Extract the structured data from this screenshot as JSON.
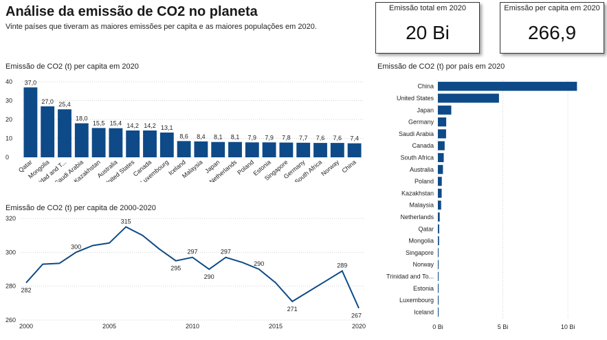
{
  "header": {
    "title": "Análise da emissão de CO2 no planeta",
    "subtitle": "Vinte países que tiveram as maiores emissões per capita e as maiores populações em 2020."
  },
  "kpis": [
    {
      "label": "Emissão total em 2020",
      "value": "20 Bi"
    },
    {
      "label": "Emissão per capita em 2020",
      "value": "266,9"
    }
  ],
  "colors": {
    "bar": "#0e4a87",
    "grid": "#cfcfcf",
    "text": "#222222"
  },
  "chart_data": [
    {
      "type": "bar",
      "title": "Emissão de CO2 (t) per capita em 2020",
      "categories": [
        "Qatar",
        "Mongolia",
        "Trinidad and T...",
        "Saudi Arabia",
        "Kazakhstan",
        "Australia",
        "United States",
        "Canada",
        "Luxembourg",
        "Iceland",
        "Malaysia",
        "Japan",
        "Netherlands",
        "Poland",
        "Estonia",
        "Singapore",
        "Germany",
        "South Africa",
        "Norway",
        "China"
      ],
      "values": [
        37.0,
        27.0,
        25.4,
        18.0,
        15.5,
        15.4,
        14.2,
        14.2,
        13.1,
        8.6,
        8.4,
        8.1,
        8.1,
        7.9,
        7.9,
        7.8,
        7.7,
        7.6,
        7.6,
        7.4
      ],
      "data_labels": [
        "37,0",
        "27,0",
        "25,4",
        "18,0",
        "15,5",
        "15,4",
        "14,2",
        "14,2",
        "13,1",
        "8,6",
        "8,4",
        "8,1",
        "8,1",
        "7,9",
        "7,9",
        "7,8",
        "7,7",
        "7,6",
        "7,6",
        "7,4"
      ],
      "ylim": [
        0,
        40
      ],
      "yticks": [
        0,
        10,
        20,
        30,
        40
      ],
      "grid": true
    },
    {
      "type": "line",
      "title": "Emissão de CO2 (t) per capita de 2000-2020",
      "x": [
        2000,
        2001,
        2002,
        2003,
        2004,
        2005,
        2006,
        2007,
        2008,
        2009,
        2010,
        2011,
        2012,
        2013,
        2014,
        2015,
        2016,
        2017,
        2018,
        2019,
        2020
      ],
      "values": [
        282,
        293,
        293.5,
        300,
        304,
        305.5,
        315,
        310,
        302,
        295,
        297,
        290,
        297,
        294,
        290,
        282,
        271,
        277,
        283,
        289,
        267
      ],
      "point_labels": [
        {
          "x": 2000,
          "text": "282"
        },
        {
          "x": 2003,
          "text": "300"
        },
        {
          "x": 2006,
          "text": "315"
        },
        {
          "x": 2009,
          "text": "295"
        },
        {
          "x": 2010,
          "text": "297"
        },
        {
          "x": 2011,
          "text": "290"
        },
        {
          "x": 2012,
          "text": "297"
        },
        {
          "x": 2014,
          "text": "290"
        },
        {
          "x": 2016,
          "text": "271"
        },
        {
          "x": 2019,
          "text": "289"
        },
        {
          "x": 2020,
          "text": "267"
        }
      ],
      "ylim": [
        260,
        320
      ],
      "yticks": [
        260,
        280,
        300,
        320
      ],
      "xticks": [
        2000,
        2005,
        2010,
        2015,
        2020
      ],
      "grid": true
    },
    {
      "type": "bar",
      "orientation": "horizontal",
      "title": "Emissão de CO2 (t) por país em 2020",
      "categories": [
        "China",
        "United States",
        "Japan",
        "Germany",
        "Saudi Arabia",
        "Canada",
        "South Africa",
        "Australia",
        "Poland",
        "Kazakhstan",
        "Malaysia",
        "Netherlands",
        "Qatar",
        "Mongolia",
        "Singapore",
        "Norway",
        "Trinidad and To...",
        "Estonia",
        "Luxembourg",
        "Iceland"
      ],
      "values": [
        10.7,
        4.7,
        1.03,
        0.64,
        0.63,
        0.52,
        0.45,
        0.39,
        0.3,
        0.29,
        0.25,
        0.14,
        0.1,
        0.09,
        0.05,
        0.04,
        0.04,
        0.01,
        0.01,
        0.003
      ],
      "xlim": [
        0,
        11
      ],
      "xticks": [
        0,
        5,
        10
      ],
      "xtick_labels": [
        "0 Bi",
        "5 Bi",
        "10 Bi"
      ],
      "grid": true
    }
  ]
}
